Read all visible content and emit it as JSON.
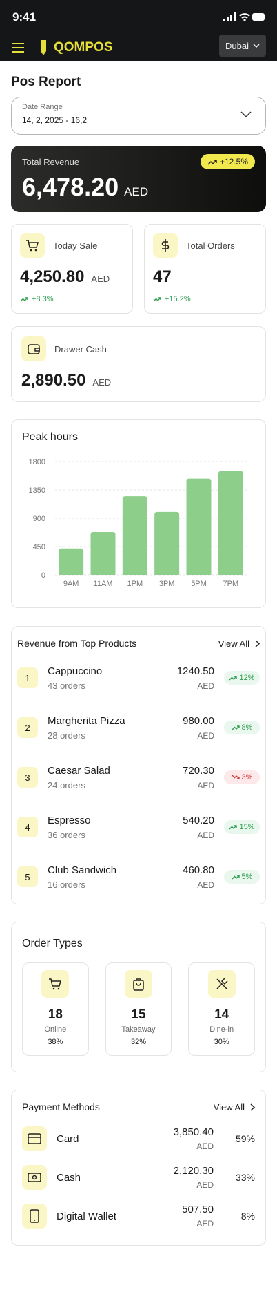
{
  "status_bar": {
    "time": "9:41"
  },
  "header": {
    "logo": "QOMPOS",
    "city": "Dubai"
  },
  "page_title": "Pos Report",
  "date_range": {
    "label": "Date Range",
    "value": "14, 2, 2025 - 16,2"
  },
  "total_revenue": {
    "label": "Total Revenue",
    "amount": "6,478.20",
    "currency": "AED",
    "change": "+12.5%"
  },
  "stats": [
    {
      "label": "Today Sale",
      "amount": "4,250.80",
      "currency": "AED",
      "change": "+8.3%"
    },
    {
      "label": "Total Orders",
      "amount": "47",
      "change": "+15.2%"
    }
  ],
  "drawer": {
    "label": "Drawer Cash",
    "amount": "2,890.50",
    "currency": "AED"
  },
  "peak_hours": {
    "type": "bar",
    "title": "Peak hours",
    "categories": [
      "9AM",
      "11AM",
      "1PM",
      "3PM",
      "5PM",
      "7PM"
    ],
    "values": [
      420,
      680,
      1250,
      1000,
      1530,
      1650
    ],
    "color": "#8dce8a",
    "ylim": [
      0,
      1800
    ],
    "yticks": [
      0,
      450,
      900,
      1350,
      1800
    ],
    "grid": true
  },
  "top_products": {
    "title": "Revenue from Top Products",
    "view_all": "View All",
    "items": [
      {
        "rank": "1",
        "name": "Cappuccino",
        "orders": "43 orders",
        "amount": "1240.50",
        "currency": "AED",
        "change": "12%",
        "trend": "up"
      },
      {
        "rank": "2",
        "name": "Margherita Pizza",
        "orders": "28 orders",
        "amount": "980.00",
        "currency": "AED",
        "change": "8%",
        "trend": "up"
      },
      {
        "rank": "3",
        "name": "Caesar Salad",
        "orders": "24 orders",
        "amount": "720.30",
        "currency": "AED",
        "change": "3%",
        "trend": "down"
      },
      {
        "rank": "4",
        "name": "Espresso",
        "orders": "36 orders",
        "amount": "540.20",
        "currency": "AED",
        "change": "15%",
        "trend": "up"
      },
      {
        "rank": "5",
        "name": "Club Sandwich",
        "orders": "16 orders",
        "amount": "460.80",
        "currency": "AED",
        "change": "5%",
        "trend": "up"
      }
    ]
  },
  "order_types": {
    "title": "Order Types",
    "items": [
      {
        "count": "18",
        "label": "Online",
        "share": "38%"
      },
      {
        "count": "15",
        "label": "Takeaway",
        "share": "32%"
      },
      {
        "count": "14",
        "label": "Dine-in",
        "share": "30%"
      }
    ]
  },
  "payment_methods": {
    "title": "Payment Methods",
    "view_all": "View All",
    "items": [
      {
        "name": "Card",
        "amount": "3,850.40",
        "currency": "AED",
        "share": "59%"
      },
      {
        "name": "Cash",
        "amount": "2,120.30",
        "currency": "AED",
        "share": "33%"
      },
      {
        "name": "Digital Wallet",
        "amount": "507.50",
        "currency": "AED",
        "share": "8%"
      }
    ]
  }
}
